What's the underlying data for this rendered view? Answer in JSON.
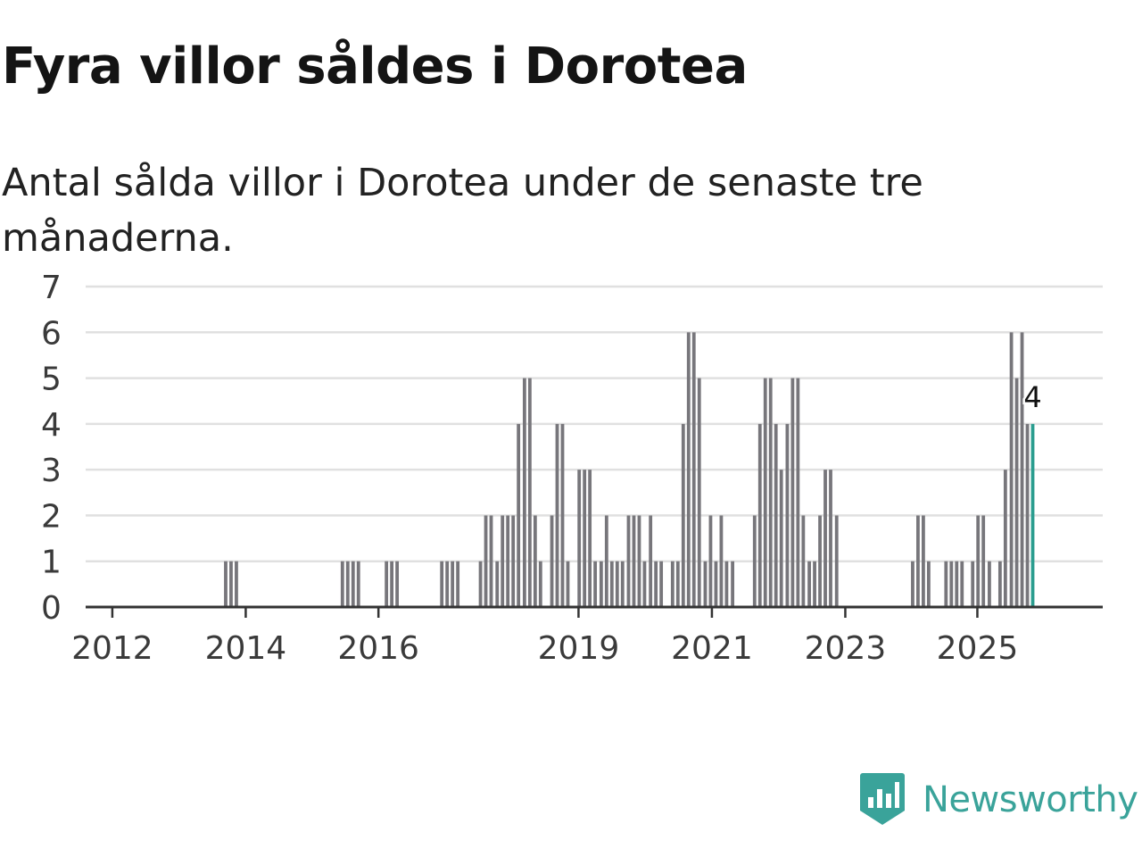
{
  "title": "Fyra villor såldes i Dorotea",
  "subtitle": "Antal sålda villor i Dorotea under de senaste tre månaderna.",
  "brand": {
    "name": "Newsworthy",
    "color": "#3aa39a",
    "icon": "newsworthy-logo-icon"
  },
  "chart_data": {
    "type": "bar",
    "x_domain": [
      2011.65,
      2026.9
    ],
    "ylim": [
      0,
      7
    ],
    "y_ticks": [
      0,
      1,
      2,
      3,
      4,
      5,
      6,
      7
    ],
    "x_ticks": [
      {
        "label": "2012",
        "x": 2012.05
      },
      {
        "label": "2014",
        "x": 2014.05
      },
      {
        "label": "2016",
        "x": 2016.04
      },
      {
        "label": "2019",
        "x": 2019.04
      },
      {
        "label": "2021",
        "x": 2021.04
      },
      {
        "label": "2023",
        "x": 2023.04
      },
      {
        "label": "2025",
        "x": 2025.02
      }
    ],
    "bar_color": "#77767b",
    "highlight_color": "#2a9d8f",
    "grid_color": "#e0e0e0",
    "highlight_label": "4",
    "series": [
      {
        "x": 2013.75,
        "v": 1
      },
      {
        "x": 2013.83,
        "v": 1
      },
      {
        "x": 2013.91,
        "v": 1
      },
      {
        "x": 2015.5,
        "v": 1
      },
      {
        "x": 2015.58,
        "v": 1
      },
      {
        "x": 2015.66,
        "v": 1
      },
      {
        "x": 2015.74,
        "v": 1
      },
      {
        "x": 2016.16,
        "v": 1
      },
      {
        "x": 2016.24,
        "v": 1
      },
      {
        "x": 2016.32,
        "v": 1
      },
      {
        "x": 2016.99,
        "v": 1
      },
      {
        "x": 2017.07,
        "v": 1
      },
      {
        "x": 2017.15,
        "v": 1
      },
      {
        "x": 2017.23,
        "v": 1
      },
      {
        "x": 2017.57,
        "v": 1
      },
      {
        "x": 2017.65,
        "v": 2
      },
      {
        "x": 2017.73,
        "v": 2
      },
      {
        "x": 2017.82,
        "v": 1
      },
      {
        "x": 2017.9,
        "v": 2
      },
      {
        "x": 2017.98,
        "v": 2
      },
      {
        "x": 2018.06,
        "v": 2
      },
      {
        "x": 2018.14,
        "v": 4
      },
      {
        "x": 2018.23,
        "v": 5
      },
      {
        "x": 2018.31,
        "v": 5
      },
      {
        "x": 2018.39,
        "v": 2
      },
      {
        "x": 2018.47,
        "v": 1
      },
      {
        "x": 2018.64,
        "v": 2
      },
      {
        "x": 2018.72,
        "v": 4
      },
      {
        "x": 2018.8,
        "v": 4
      },
      {
        "x": 2018.88,
        "v": 1
      },
      {
        "x": 2019.05,
        "v": 3
      },
      {
        "x": 2019.13,
        "v": 3
      },
      {
        "x": 2019.21,
        "v": 3
      },
      {
        "x": 2019.29,
        "v": 1
      },
      {
        "x": 2019.38,
        "v": 1
      },
      {
        "x": 2019.46,
        "v": 2
      },
      {
        "x": 2019.54,
        "v": 1
      },
      {
        "x": 2019.62,
        "v": 1
      },
      {
        "x": 2019.7,
        "v": 1
      },
      {
        "x": 2019.79,
        "v": 2
      },
      {
        "x": 2019.87,
        "v": 2
      },
      {
        "x": 2019.95,
        "v": 2
      },
      {
        "x": 2020.03,
        "v": 1
      },
      {
        "x": 2020.12,
        "v": 2
      },
      {
        "x": 2020.2,
        "v": 1
      },
      {
        "x": 2020.28,
        "v": 1
      },
      {
        "x": 2020.45,
        "v": 1
      },
      {
        "x": 2020.53,
        "v": 1
      },
      {
        "x": 2020.61,
        "v": 4
      },
      {
        "x": 2020.69,
        "v": 6
      },
      {
        "x": 2020.77,
        "v": 6
      },
      {
        "x": 2020.85,
        "v": 5
      },
      {
        "x": 2020.94,
        "v": 1
      },
      {
        "x": 2021.02,
        "v": 2
      },
      {
        "x": 2021.1,
        "v": 1
      },
      {
        "x": 2021.18,
        "v": 2
      },
      {
        "x": 2021.26,
        "v": 1
      },
      {
        "x": 2021.35,
        "v": 1
      },
      {
        "x": 2021.68,
        "v": 2
      },
      {
        "x": 2021.76,
        "v": 4
      },
      {
        "x": 2021.84,
        "v": 5
      },
      {
        "x": 2021.92,
        "v": 5
      },
      {
        "x": 2022.0,
        "v": 4
      },
      {
        "x": 2022.08,
        "v": 3
      },
      {
        "x": 2022.17,
        "v": 4
      },
      {
        "x": 2022.25,
        "v": 5
      },
      {
        "x": 2022.33,
        "v": 5
      },
      {
        "x": 2022.41,
        "v": 2
      },
      {
        "x": 2022.5,
        "v": 1
      },
      {
        "x": 2022.58,
        "v": 1
      },
      {
        "x": 2022.66,
        "v": 2
      },
      {
        "x": 2022.74,
        "v": 3
      },
      {
        "x": 2022.82,
        "v": 3
      },
      {
        "x": 2022.91,
        "v": 2
      },
      {
        "x": 2024.05,
        "v": 1
      },
      {
        "x": 2024.13,
        "v": 2
      },
      {
        "x": 2024.21,
        "v": 2
      },
      {
        "x": 2024.29,
        "v": 1
      },
      {
        "x": 2024.55,
        "v": 1
      },
      {
        "x": 2024.63,
        "v": 1
      },
      {
        "x": 2024.71,
        "v": 1
      },
      {
        "x": 2024.79,
        "v": 1
      },
      {
        "x": 2024.95,
        "v": 1
      },
      {
        "x": 2025.03,
        "v": 2
      },
      {
        "x": 2025.11,
        "v": 2
      },
      {
        "x": 2025.2,
        "v": 1
      },
      {
        "x": 2025.36,
        "v": 1
      },
      {
        "x": 2025.44,
        "v": 3
      },
      {
        "x": 2025.53,
        "v": 6
      },
      {
        "x": 2025.61,
        "v": 5
      },
      {
        "x": 2025.69,
        "v": 6
      },
      {
        "x": 2025.77,
        "v": 4
      },
      {
        "x": 2025.85,
        "v": 4,
        "highlight": true
      }
    ]
  }
}
